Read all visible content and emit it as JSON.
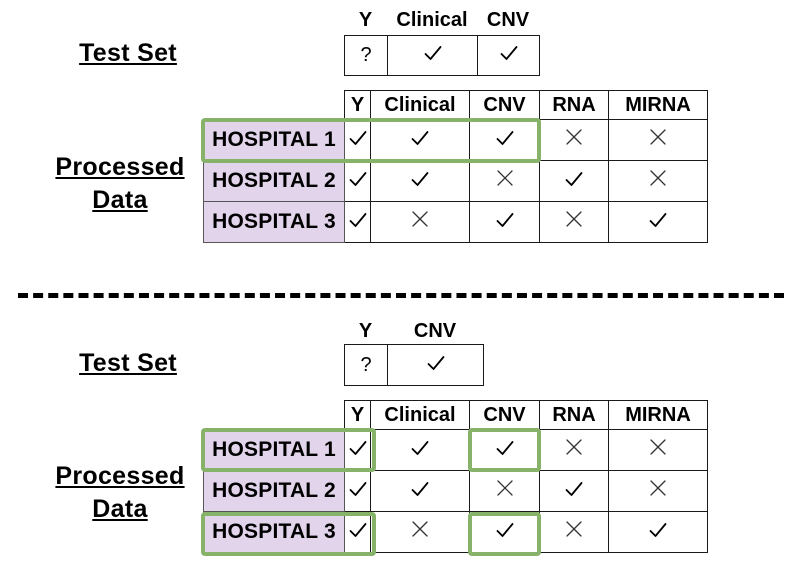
{
  "top": {
    "test_set": {
      "label": "Test Set",
      "columns": [
        "Y",
        "Clinical",
        "CNV"
      ],
      "values": [
        "?",
        "check",
        "check"
      ]
    },
    "processed": {
      "label_line1": "Processed",
      "label_line2": "Data",
      "columns": [
        "Y",
        "Clinical",
        "CNV",
        "RNA",
        "MIRNA"
      ],
      "rows": [
        {
          "hospital": "HOSPITAL 1",
          "cells": [
            "check",
            "check",
            "check",
            "cross",
            "cross"
          ]
        },
        {
          "hospital": "HOSPITAL 2",
          "cells": [
            "check",
            "check",
            "cross",
            "check",
            "cross"
          ]
        },
        {
          "hospital": "HOSPITAL 3",
          "cells": [
            "check",
            "cross",
            "check",
            "cross",
            "check"
          ]
        }
      ]
    }
  },
  "bottom": {
    "test_set": {
      "label": "Test Set",
      "columns": [
        "Y",
        "CNV"
      ],
      "values": [
        "?",
        "check"
      ]
    },
    "processed": {
      "label_line1": "Processed",
      "label_line2": "Data",
      "columns": [
        "Y",
        "Clinical",
        "CNV",
        "RNA",
        "MIRNA"
      ],
      "rows": [
        {
          "hospital": "HOSPITAL 1",
          "cells": [
            "check",
            "check",
            "check",
            "cross",
            "cross"
          ]
        },
        {
          "hospital": "HOSPITAL 2",
          "cells": [
            "check",
            "check",
            "cross",
            "check",
            "cross"
          ]
        },
        {
          "hospital": "HOSPITAL 3",
          "cells": [
            "check",
            "cross",
            "check",
            "cross",
            "check"
          ]
        }
      ]
    }
  },
  "colors": {
    "highlight": "#86b26a",
    "hospital_fill": "#e2d4ea"
  }
}
